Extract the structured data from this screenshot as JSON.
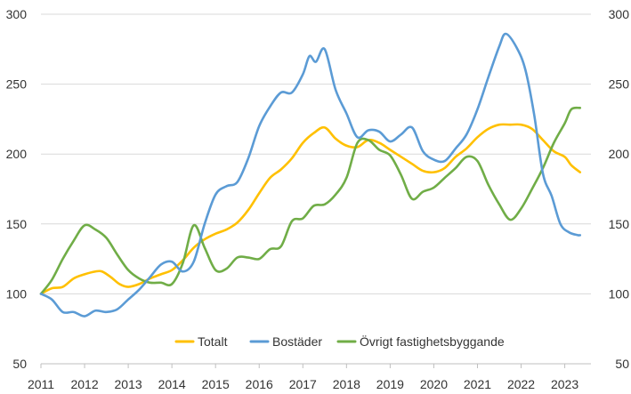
{
  "chart_data": {
    "type": "line",
    "title": "",
    "xlabel": "",
    "ylabel": "",
    "xlim": [
      2011,
      2023.6
    ],
    "ylim": [
      50,
      300
    ],
    "y_ticks": [
      50,
      100,
      150,
      200,
      250,
      300
    ],
    "x_ticks": [
      "2011",
      "2012",
      "2013",
      "2014",
      "2015",
      "2016",
      "2017",
      "2018",
      "2019",
      "2020",
      "2021",
      "2022",
      "2023"
    ],
    "grid": true,
    "secondary_y_axis": true,
    "legend_position": "bottom-center",
    "series": [
      {
        "name": "Totalt",
        "color": "#FFC000",
        "x": [
          2011.0,
          2011.25,
          2011.5,
          2011.75,
          2012.0,
          2012.25,
          2012.4,
          2012.6,
          2012.8,
          2013.0,
          2013.25,
          2013.5,
          2013.75,
          2014.0,
          2014.25,
          2014.5,
          2014.75,
          2015.0,
          2015.25,
          2015.5,
          2015.75,
          2016.0,
          2016.25,
          2016.5,
          2016.75,
          2017.0,
          2017.25,
          2017.5,
          2017.75,
          2018.0,
          2018.25,
          2018.5,
          2018.75,
          2019.0,
          2019.25,
          2019.5,
          2019.75,
          2020.0,
          2020.25,
          2020.5,
          2020.75,
          2021.0,
          2021.25,
          2021.5,
          2021.75,
          2022.0,
          2022.25,
          2022.5,
          2022.75,
          2023.0,
          2023.15,
          2023.35
        ],
        "values": [
          100,
          104,
          105,
          111,
          114,
          116,
          116,
          112,
          107,
          105,
          107,
          111,
          114,
          117,
          124,
          133,
          139,
          143,
          146,
          151,
          160,
          172,
          183,
          189,
          197,
          208,
          215,
          219,
          211,
          206,
          205,
          210,
          208,
          203,
          198,
          193,
          188,
          187,
          190,
          198,
          204,
          212,
          218,
          221,
          221,
          221,
          218,
          210,
          202,
          198,
          192,
          187
        ]
      },
      {
        "name": "Bostäder",
        "color": "#5B9BD5",
        "x": [
          2011.0,
          2011.25,
          2011.5,
          2011.75,
          2012.0,
          2012.25,
          2012.5,
          2012.75,
          2013.0,
          2013.25,
          2013.5,
          2013.75,
          2014.0,
          2014.25,
          2014.5,
          2014.75,
          2015.0,
          2015.25,
          2015.5,
          2015.75,
          2016.0,
          2016.25,
          2016.5,
          2016.75,
          2017.0,
          2017.15,
          2017.3,
          2017.5,
          2017.75,
          2018.0,
          2018.25,
          2018.5,
          2018.75,
          2019.0,
          2019.25,
          2019.5,
          2019.75,
          2020.0,
          2020.25,
          2020.5,
          2020.75,
          2021.0,
          2021.25,
          2021.5,
          2021.65,
          2021.9,
          2022.1,
          2022.3,
          2022.5,
          2022.7,
          2022.9,
          2023.1,
          2023.3,
          2023.35
        ],
        "values": [
          100,
          96,
          87,
          87,
          84,
          88,
          87,
          89,
          96,
          103,
          112,
          121,
          123,
          116,
          123,
          150,
          171,
          177,
          180,
          197,
          220,
          234,
          244,
          244,
          257,
          270,
          266,
          275,
          246,
          229,
          212,
          217,
          216,
          209,
          214,
          219,
          202,
          196,
          195,
          204,
          214,
          232,
          255,
          277,
          286,
          276,
          260,
          228,
          186,
          170,
          150,
          144,
          142,
          142
        ]
      },
      {
        "name": "Övrigt fastighetsbyggande",
        "color": "#70AD47",
        "x": [
          2011.0,
          2011.25,
          2011.5,
          2011.75,
          2012.0,
          2012.25,
          2012.5,
          2012.75,
          2013.0,
          2013.25,
          2013.5,
          2013.75,
          2014.0,
          2014.25,
          2014.5,
          2014.75,
          2015.0,
          2015.25,
          2015.5,
          2015.75,
          2016.0,
          2016.25,
          2016.5,
          2016.75,
          2017.0,
          2017.25,
          2017.5,
          2017.75,
          2018.0,
          2018.25,
          2018.5,
          2018.75,
          2019.0,
          2019.25,
          2019.5,
          2019.75,
          2020.0,
          2020.25,
          2020.5,
          2020.75,
          2021.0,
          2021.25,
          2021.5,
          2021.75,
          2022.0,
          2022.25,
          2022.5,
          2022.75,
          2023.0,
          2023.15,
          2023.35
        ],
        "values": [
          100,
          110,
          125,
          138,
          149,
          146,
          140,
          128,
          117,
          111,
          108,
          108,
          107,
          122,
          149,
          133,
          117,
          118,
          126,
          126,
          125,
          132,
          134,
          152,
          154,
          163,
          164,
          171,
          183,
          208,
          210,
          203,
          199,
          185,
          168,
          173,
          176,
          183,
          190,
          198,
          195,
          178,
          164,
          153,
          161,
          175,
          190,
          208,
          222,
          232,
          233
        ]
      }
    ]
  }
}
